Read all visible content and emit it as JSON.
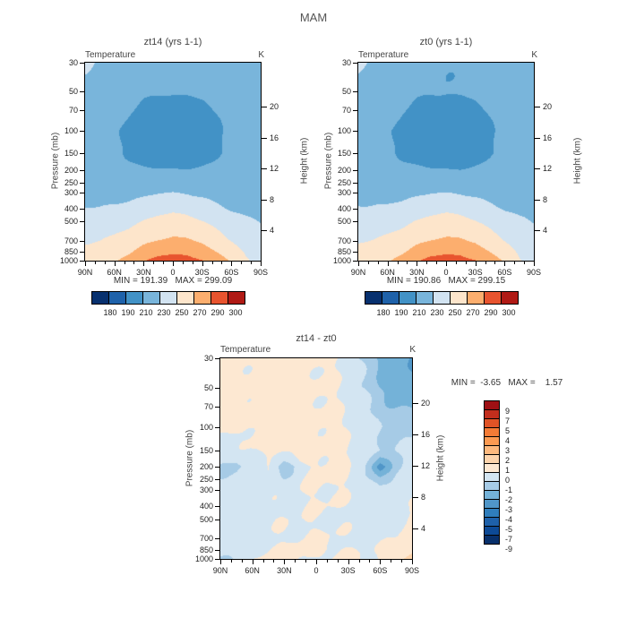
{
  "figure_title": "MAM",
  "axes": {
    "field_label": "Temperature",
    "units_label": "K",
    "pressure_label": "Pressure (mb)",
    "height_label": "Height (km)",
    "pressure_ticks": [
      30,
      50,
      70,
      100,
      150,
      200,
      250,
      300,
      400,
      500,
      700,
      850,
      1000
    ],
    "height_ticks": [
      20,
      16,
      12,
      8,
      4
    ],
    "lat_ticks": [
      "90N",
      "60N",
      "30N",
      "0",
      "30S",
      "60S",
      "90S"
    ]
  },
  "temp_levels": [
    180,
    190,
    210,
    230,
    250,
    270,
    290,
    300
  ],
  "palette_temp": [
    "#08316f",
    "#1f62aa",
    "#4292c6",
    "#79b5db",
    "#d2e3f1",
    "#fde5cb",
    "#fcae6e",
    "#e8542f",
    "#b01a15"
  ],
  "diff_levels": [
    -9,
    -7,
    -5,
    -4,
    -3,
    -2,
    -1,
    0,
    1,
    2,
    3,
    4,
    5,
    7,
    9
  ],
  "palette_diff": [
    "#08306b",
    "#0d4a96",
    "#1e61aa",
    "#2f7ebc",
    "#5096c8",
    "#74b2d8",
    "#a6cbe6",
    "#d3e5f2",
    "#fde8d2",
    "#fdd4ac",
    "#fdb97e",
    "#fc9a52",
    "#f47b36",
    "#e05326",
    "#c22e1d",
    "#9e1014"
  ],
  "chart_data": [
    {
      "type": "heatmap",
      "title": "zt14 (yrs 1-1)",
      "minmax": "MIN = 191.39   MAX = 299.09",
      "min": 191.39,
      "max": 299.09,
      "levels_key": "temp_levels",
      "palette_key": "palette_temp",
      "x_lat_deg": [
        90,
        75,
        60,
        45,
        30,
        15,
        0,
        -15,
        -30,
        -45,
        -60,
        -75,
        -90
      ],
      "y_pressures_mb": [
        30,
        50,
        70,
        100,
        150,
        200,
        250,
        300,
        400,
        500,
        700,
        850,
        1000
      ],
      "values": [
        [
          232,
          228,
          222,
          218,
          214,
          211,
          210,
          211,
          214,
          218,
          221,
          222,
          222
        ],
        [
          227,
          224,
          220,
          216,
          213,
          211.5,
          211,
          211.5,
          213,
          216,
          219,
          220,
          221
        ],
        [
          224,
          221,
          217,
          211,
          206,
          203.5,
          203,
          203.5,
          206,
          211,
          216,
          218,
          219
        ],
        [
          221,
          218,
          213,
          206,
          197,
          192.5,
          191.5,
          192.5,
          197,
          207,
          214,
          217,
          218
        ],
        [
          219,
          217,
          213,
          208,
          202,
          199,
          198,
          199,
          203,
          209,
          214,
          215,
          215
        ],
        [
          220,
          218,
          215,
          213,
          211.5,
          211,
          211,
          211,
          212,
          213,
          215,
          215,
          215
        ],
        [
          222,
          221,
          219,
          218,
          218,
          219,
          219.5,
          219,
          218,
          217,
          216,
          216,
          216
        ],
        [
          226,
          225,
          224,
          224,
          226,
          229,
          230,
          229,
          226,
          222,
          219,
          218,
          218
        ],
        [
          231,
          231,
          232,
          235,
          240,
          244,
          246,
          244,
          240,
          234,
          229,
          226,
          225
        ],
        [
          237,
          238,
          241,
          245,
          251,
          256,
          258,
          256,
          251,
          244,
          237,
          232,
          230
        ],
        [
          248,
          250,
          254,
          259,
          266,
          271,
          273,
          272,
          267,
          258,
          250,
          242,
          238
        ],
        [
          253,
          256,
          261,
          268,
          277,
          284,
          286,
          285,
          279,
          269,
          258,
          247,
          241
        ],
        [
          257,
          261,
          268,
          277,
          288,
          296,
          299,
          297,
          291,
          280,
          268,
          252,
          244
        ]
      ]
    },
    {
      "type": "heatmap",
      "title": "zt0 (yrs 1-1)",
      "minmax": "MIN = 190.86   MAX = 299.15",
      "min": 190.86,
      "max": 299.15,
      "levels_key": "temp_levels",
      "palette_key": "palette_temp",
      "x_lat_deg": [
        90,
        75,
        60,
        45,
        30,
        15,
        0,
        -15,
        -30,
        -45,
        -60,
        -75,
        -90
      ],
      "y_pressures_mb": [
        30,
        50,
        70,
        100,
        150,
        200,
        250,
        300,
        400,
        500,
        700,
        850,
        1000
      ],
      "values": [
        [
          231.7,
          227.8,
          221.8,
          217.7,
          213.7,
          210.8,
          209.8,
          210.9,
          214.3,
          219.2,
          223.2,
          224.8,
          225.0
        ],
        [
          226.6,
          223.7,
          219.7,
          215.7,
          212.7,
          211.3,
          210.8,
          211.4,
          213.3,
          217.0,
          221.0,
          222.6,
          223.8
        ],
        [
          223.7,
          220.8,
          216.7,
          210.6,
          205.7,
          203.2,
          202.8,
          203.4,
          206.2,
          211.8,
          217.5,
          220.0,
          221.2
        ],
        [
          220.8,
          217.9,
          212.7,
          205.6,
          196.6,
          192.2,
          191.2,
          192.3,
          197.0,
          207.5,
          215.0,
          218.3,
          219.5
        ],
        [
          219.3,
          217.4,
          213.0,
          207.7,
          201.7,
          198.7,
          197.8,
          198.8,
          202.9,
          209.4,
          215.2,
          216.0,
          215.8
        ],
        [
          221.0,
          219.2,
          215.6,
          213.2,
          213.3,
          211.3,
          210.8,
          210.7,
          212.0,
          213.8,
          218.6,
          216.2,
          215.6
        ],
        [
          222.8,
          221.9,
          219.5,
          218.3,
          218.8,
          219.2,
          219.4,
          218.8,
          218.0,
          217.5,
          217.8,
          216.8,
          216.4
        ],
        [
          226.6,
          225.6,
          224.4,
          224.3,
          226.4,
          229.1,
          229.9,
          228.9,
          226.1,
          222.4,
          219.9,
          218.5,
          218.3
        ],
        [
          231.5,
          231.4,
          232.3,
          235.2,
          240.2,
          244.1,
          246.0,
          244.0,
          240.2,
          234.3,
          229.5,
          226.3,
          225.2
        ],
        [
          237.6,
          238.4,
          241.3,
          245.2,
          251.1,
          256.1,
          258.1,
          256.1,
          251.2,
          244.3,
          237.4,
          232.2,
          229.8
        ],
        [
          248.8,
          250.5,
          254.3,
          259.2,
          266.1,
          271.0,
          272.9,
          272.0,
          267.2,
          258.3,
          250.3,
          242.0,
          237.6
        ],
        [
          253.9,
          256.5,
          261.2,
          267.9,
          276.8,
          283.7,
          285.7,
          284.8,
          279.0,
          269.2,
          258.1,
          246.7,
          240.4
        ],
        [
          258.1,
          261.6,
          268.1,
          276.7,
          287.6,
          295.8,
          299.1,
          296.9,
          290.8,
          280.1,
          267.9,
          251.2,
          242.5
        ]
      ]
    },
    {
      "type": "heatmap",
      "title": "zt14 - zt0",
      "minmax": "MIN =  -3.65   MAX =    1.57",
      "min": -3.65,
      "max": 1.57,
      "levels_key": "diff_levels",
      "palette_key": "palette_diff",
      "x_lat_deg": [
        90,
        75,
        60,
        45,
        30,
        15,
        0,
        -15,
        -30,
        -45,
        -60,
        -75,
        -90
      ],
      "y_pressures_mb": [
        30,
        50,
        70,
        100,
        150,
        200,
        250,
        300,
        400,
        500,
        700,
        850,
        1000
      ],
      "values": [
        [
          0.3,
          0.2,
          0.2,
          0.3,
          0.3,
          0.2,
          0.2,
          0.1,
          -0.3,
          -1.2,
          -2.2,
          -2.8,
          -3.0
        ],
        [
          0.4,
          0.3,
          0.3,
          0.3,
          0.3,
          0.2,
          0.2,
          0.1,
          -0.3,
          -1.0,
          -2.0,
          -2.6,
          -2.8
        ],
        [
          0.3,
          0.2,
          0.3,
          0.4,
          0.3,
          0.3,
          0.2,
          0.1,
          -0.2,
          -0.8,
          -1.5,
          -2.0,
          -2.2
        ],
        [
          0.2,
          0.1,
          0.3,
          0.4,
          0.4,
          0.3,
          0.3,
          0.2,
          0.0,
          -0.5,
          -1.0,
          -1.3,
          -1.5
        ],
        [
          -0.3,
          -0.4,
          0.0,
          0.3,
          0.3,
          0.3,
          0.2,
          0.2,
          0.1,
          -0.4,
          -1.2,
          -1.0,
          -0.8
        ],
        [
          -1.0,
          -1.2,
          -0.6,
          -0.2,
          -1.8,
          -0.3,
          0.2,
          0.3,
          0.0,
          -0.8,
          -3.6,
          -1.2,
          -0.6
        ],
        [
          -0.8,
          -0.9,
          -0.5,
          -0.3,
          -0.8,
          -0.2,
          0.1,
          0.2,
          0.0,
          -0.5,
          -1.8,
          -0.8,
          -0.4
        ],
        [
          -0.6,
          -0.6,
          -0.4,
          -0.3,
          -0.4,
          -0.1,
          0.1,
          0.1,
          -0.1,
          -0.4,
          -0.9,
          -0.5,
          -0.3
        ],
        [
          -0.5,
          -0.4,
          -0.3,
          -0.2,
          -0.2,
          -0.1,
          0.0,
          0.0,
          -0.2,
          -0.3,
          -0.5,
          -0.3,
          -0.2
        ],
        [
          -0.6,
          -0.4,
          -0.3,
          -0.2,
          -0.1,
          -0.1,
          -0.1,
          -0.1,
          -0.2,
          -0.3,
          -0.4,
          -0.2,
          0.2
        ],
        [
          -0.8,
          -0.5,
          -0.3,
          -0.2,
          -0.1,
          0.0,
          0.1,
          0.0,
          -0.2,
          -0.3,
          -0.3,
          0.0,
          0.4
        ],
        [
          -0.9,
          -0.5,
          -0.2,
          0.1,
          0.2,
          0.3,
          0.3,
          0.2,
          0.0,
          -0.2,
          -0.1,
          0.3,
          0.6
        ],
        [
          -1.1,
          -0.6,
          -0.1,
          0.3,
          0.4,
          0.2,
          -0.1,
          0.1,
          0.2,
          -0.1,
          0.1,
          0.8,
          1.5
        ]
      ]
    }
  ]
}
